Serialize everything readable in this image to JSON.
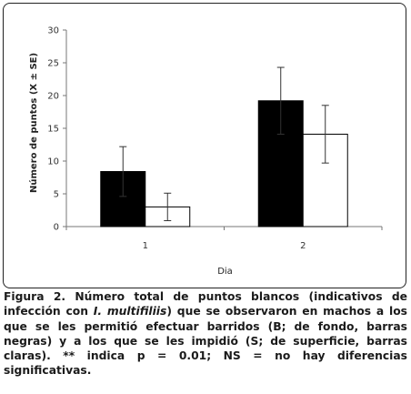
{
  "chart_data": {
    "type": "bar",
    "categories": [
      "1",
      "2"
    ],
    "xlabel": "Dia",
    "ylabel": "Número de puntos (X ± SE)",
    "ylim": [
      0,
      30
    ],
    "yticks": [
      0,
      5,
      10,
      15,
      20,
      25,
      30
    ],
    "grid": false,
    "legend": "none",
    "series": [
      {
        "values": [
          8.4,
          19.2
        ],
        "errors": [
          3.8,
          5.1
        ],
        "color": "#000000"
      },
      {
        "values": [
          3.0,
          14.1
        ],
        "errors": [
          2.1,
          4.4
        ],
        "color": "#ffffff"
      }
    ]
  },
  "caption": {
    "part1": "Figura 2. Número total de puntos blancos (indicativos de infección con ",
    "species": "I. multifiliis",
    "part2": ") que se observaron en machos a los que se les permitió efectuar barridos (B; de fondo, barras negras) y a los que se les impidió (S; de superficie, barras claras). ** indica p = 0.01; NS = no hay diferencias significativas."
  }
}
